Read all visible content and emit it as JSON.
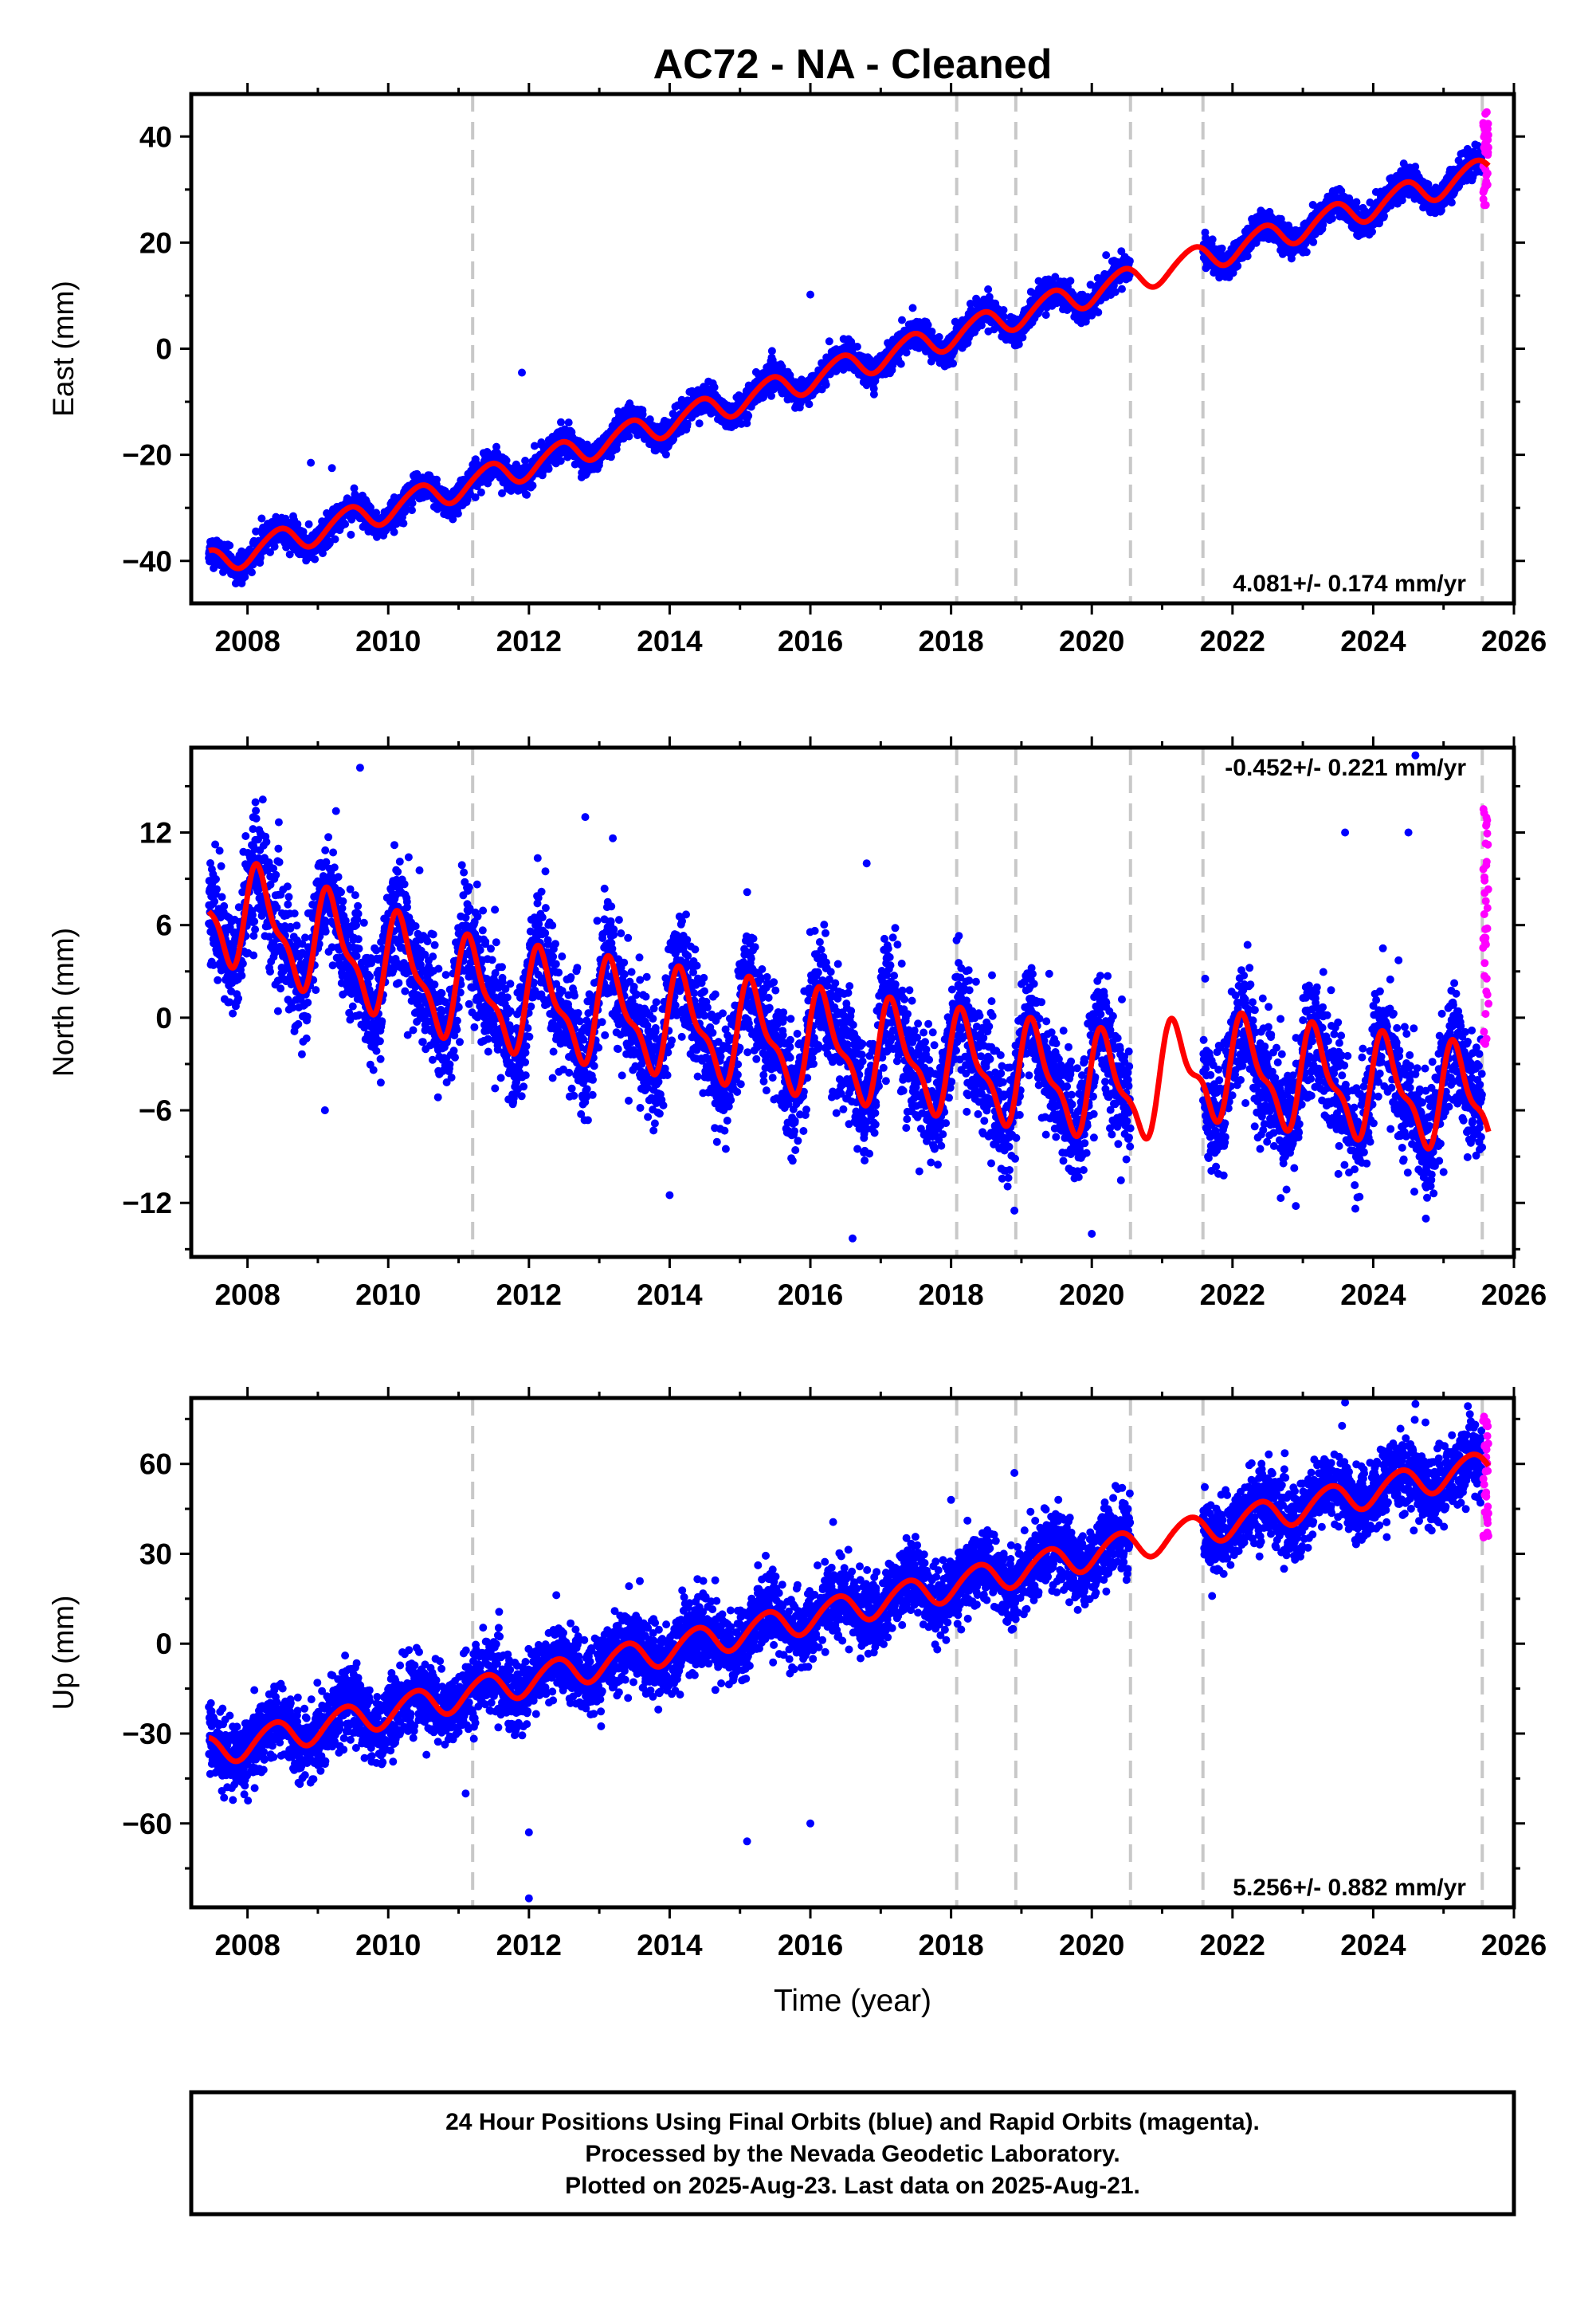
{
  "title": "AC72  - NA - Cleaned",
  "footer": {
    "lines": [
      "24 Hour Positions Using Final Orbits (blue) and Rapid Orbits (magenta).",
      "Processed by the Nevada Geodetic Laboratory.",
      "Plotted on 2025-Aug-23. Last data on 2025-Aug-21."
    ]
  },
  "colors": {
    "final_orbits": "#0000ff",
    "rapid_orbits": "#ff00ff",
    "model": "#ff0000",
    "breaks": "#c8c8c8",
    "frame": "#000000"
  },
  "chart_data": [
    {
      "type": "scatter",
      "name": "east",
      "title": "",
      "ylabel": "East (mm)",
      "xlabel": "",
      "xlim": [
        2007.2,
        2026.0
      ],
      "ylim": [
        -48,
        48
      ],
      "xticks": [
        2008,
        2010,
        2012,
        2014,
        2016,
        2018,
        2020,
        2022,
        2024,
        2026
      ],
      "yticks": [
        -40,
        -20,
        0,
        20,
        40
      ],
      "rate_label": "4.081+/- 0.174 mm/yr",
      "rate_position": "bottom-right",
      "breaks": [
        2011.2,
        2018.08,
        2018.92,
        2020.55,
        2021.58,
        2025.55
      ],
      "data_start": 2007.45,
      "data_end": 2025.64,
      "gap": [
        2020.55,
        2021.58
      ],
      "model": {
        "a": -40.5,
        "t0": 2007.45,
        "rate": 4.081,
        "annual_amp": 2.5,
        "annual_phase": 5.2,
        "semi_amp": 0.3
      },
      "noise": 1.3,
      "rapid_range": [
        27,
        46
      ],
      "outliers": [
        [
          2008.9,
          -21.5
        ],
        [
          2011.9,
          -4.5
        ],
        [
          2016.0,
          10.2
        ],
        [
          2009.2,
          -22.5
        ]
      ]
    },
    {
      "type": "scatter",
      "name": "north",
      "title": "",
      "ylabel": "North (mm)",
      "xlabel": "",
      "xlim": [
        2007.2,
        2026.0
      ],
      "ylim": [
        -15.5,
        17.5
      ],
      "xticks": [
        2008,
        2010,
        2012,
        2014,
        2016,
        2018,
        2020,
        2022,
        2024,
        2026
      ],
      "yticks": [
        -12,
        -6,
        0,
        6,
        12
      ],
      "rate_label": "-0.452+/- 0.221 mm/yr",
      "rate_position": "top-right",
      "breaks": [
        2011.2,
        2018.08,
        2018.92,
        2020.55,
        2021.58,
        2025.55
      ],
      "data_start": 2007.45,
      "data_end": 2025.64,
      "gap": [
        2020.55,
        2021.58
      ],
      "model": {
        "a": 3.2,
        "t0": 2007.45,
        "rate": -0.452,
        "annual_amp": 3.0,
        "annual_phase": 0.35,
        "semi_amp": 1.2,
        "trend_shape": [
          [
            2007.45,
            4.0
          ],
          [
            2011.2,
            0.0
          ],
          [
            2018.08,
            -1.5
          ],
          [
            2020.55,
            -2.0
          ],
          [
            2021.58,
            0.0
          ],
          [
            2025.64,
            -0.5
          ]
        ]
      },
      "noise": 1.9,
      "rapid_range": [
        -2,
        14
      ],
      "outliers": [
        [
          2009.6,
          16.2
        ],
        [
          2012.8,
          13.0
        ],
        [
          2016.6,
          -14.3
        ],
        [
          2018.9,
          -12.5
        ],
        [
          2020.0,
          -14.0
        ],
        [
          2009.1,
          -6.0
        ],
        [
          2014.0,
          -11.5
        ],
        [
          2016.8,
          10.0
        ],
        [
          2023.6,
          12.0
        ],
        [
          2024.5,
          12.0
        ],
        [
          2024.6,
          17.0
        ],
        [
          2025.0,
          -10.0
        ],
        [
          2022.9,
          -12.2
        ]
      ]
    },
    {
      "type": "scatter",
      "name": "up",
      "title": "",
      "ylabel": "Up (mm)",
      "xlabel": "Time (year)",
      "xlim": [
        2007.2,
        2026.0
      ],
      "ylim": [
        -88,
        82
      ],
      "xticks": [
        2008,
        2010,
        2012,
        2014,
        2016,
        2018,
        2020,
        2022,
        2024,
        2026
      ],
      "yticks": [
        -60,
        -30,
        0,
        30,
        60
      ],
      "rate_label": "5.256+/- 0.882 mm/yr",
      "rate_position": "bottom-right",
      "breaks": [
        2011.2,
        2018.08,
        2018.92,
        2020.55,
        2021.58,
        2025.55
      ],
      "data_start": 2007.45,
      "data_end": 2025.64,
      "gap": [
        2020.55,
        2021.58
      ],
      "model": {
        "a": -36.0,
        "t0": 2007.45,
        "rate": 5.256,
        "annual_amp": 5.0,
        "annual_phase": 5.5,
        "semi_amp": 0.5
      },
      "noise": 6.0,
      "rapid_range": [
        35,
        78
      ],
      "outliers": [
        [
          2012.0,
          -85.0
        ],
        [
          2015.1,
          -66.0
        ],
        [
          2012.0,
          -63.0
        ],
        [
          2023.6,
          80.5
        ],
        [
          2024.6,
          80.0
        ],
        [
          2016.0,
          -60.0
        ],
        [
          2018.0,
          48.0
        ],
        [
          2018.9,
          57.0
        ],
        [
          2011.1,
          -50.0
        ]
      ]
    }
  ]
}
